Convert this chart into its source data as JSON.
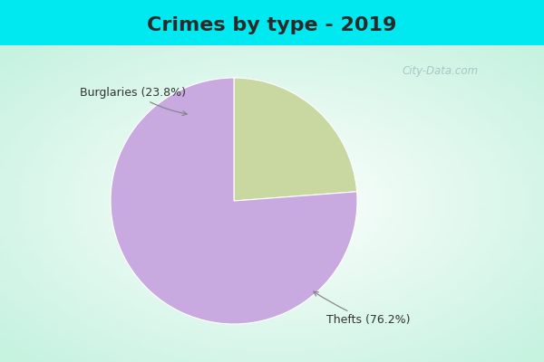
{
  "title": "Crimes by type - 2019",
  "slices": [
    {
      "label": "Burglaries (23.8%)",
      "value": 23.8,
      "color": "#c8d8a0"
    },
    {
      "label": "Thefts (76.2%)",
      "value": 76.2,
      "color": "#c9aae0"
    }
  ],
  "bg_cyan": "#00e8f0",
  "bg_inner": "#e8f8ee",
  "title_fontsize": 16,
  "watermark": "City-Data.com",
  "annotation_color": "#333333",
  "arrow_color": "#888888"
}
